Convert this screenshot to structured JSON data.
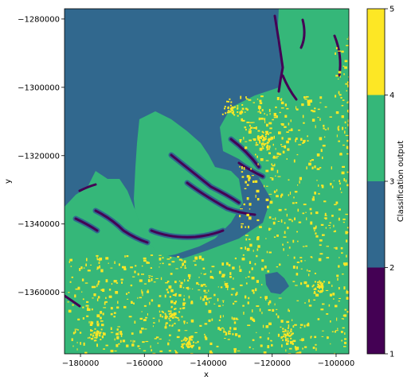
{
  "chart_data": {
    "type": "heatmap",
    "title": "",
    "xlabel": "x",
    "ylabel": "y",
    "xlim": [
      -185000,
      -96000
    ],
    "ylim": [
      -1378000,
      -1277000
    ],
    "xticks": [
      -180000,
      -160000,
      -140000,
      -120000,
      -100000
    ],
    "xtick_labels": [
      "−180000",
      "−160000",
      "−140000",
      "−120000",
      "−100000"
    ],
    "yticks": [
      -1280000,
      -1300000,
      -1320000,
      -1340000,
      -1360000
    ],
    "ytick_labels": [
      "−1280000",
      "−1300000",
      "−1320000",
      "−1340000",
      "−1360000"
    ],
    "colorbar": {
      "label": "Classification output",
      "range": [
        1,
        5
      ],
      "ticks": [
        1,
        2,
        3,
        4,
        5
      ],
      "tick_labels": [
        "1",
        "2",
        "3",
        "4",
        "5"
      ],
      "classes": [
        {
          "from": 1,
          "to": 2,
          "color": "#440154"
        },
        {
          "from": 2,
          "to": 3,
          "color": "#31688e"
        },
        {
          "from": 3,
          "to": 4,
          "color": "#35b779"
        },
        {
          "from": 4,
          "to": 5,
          "color": "#fde725"
        }
      ]
    },
    "grid": false
  }
}
